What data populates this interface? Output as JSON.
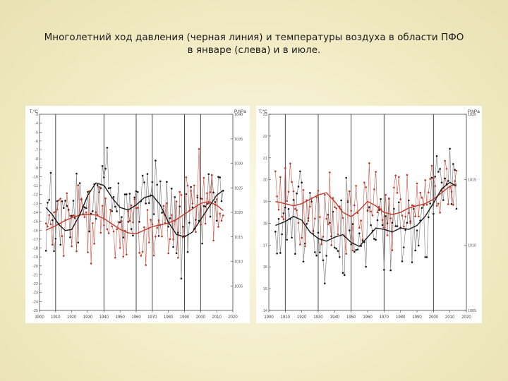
{
  "slide": {
    "title_line1": "Многолетний ход давления (черная линия) и температуры воздуха в области ПФО",
    "title_line2": "в январе (слева) и в июле."
  },
  "colors": {
    "temperature": "#c0392b",
    "pressure": "#1a1a1a",
    "panel_background": "#ffffff",
    "slide_background": "#f1ebc4"
  },
  "chart_data": [
    {
      "type": "line",
      "panel": "january",
      "y_left_label": "T,°C",
      "y_right_label": "P,hPa",
      "xlim": [
        1900,
        2020
      ],
      "ylim_left": [
        -25,
        -3
      ],
      "ylim_right": [
        1000,
        1040
      ],
      "x_ticks": [
        1900,
        1910,
        1920,
        1930,
        1940,
        1950,
        1960,
        1970,
        1980,
        1990,
        2000,
        2010,
        2020
      ],
      "y_left_ticks": [
        -3,
        -4,
        -5,
        -6,
        -7,
        -8,
        -9,
        -10,
        -11,
        -12,
        -13,
        -14,
        -15,
        -16,
        -17,
        -18,
        -19,
        -20,
        -21,
        -22,
        -23,
        -24,
        -25
      ],
      "y_right_ticks": [
        1040,
        1035,
        1030,
        1025,
        1020,
        1015,
        1010,
        1005
      ],
      "vertical_lines": [
        1910,
        1940,
        1960,
        1970,
        1990,
        2000
      ],
      "grid": false,
      "legend": "none",
      "series": [
        {
          "key": "temperature",
          "axis": "left",
          "smooth_x": [
            1904,
            1910,
            1915,
            1920,
            1925,
            1930,
            1935,
            1940,
            1945,
            1950,
            1955,
            1960,
            1965,
            1970,
            1975,
            1980,
            1985,
            1990,
            1995,
            2000,
            2005,
            2010,
            2014
          ],
          "smooth_y": [
            -16.0,
            -15.5,
            -15.0,
            -14.6,
            -14.3,
            -14.2,
            -14.3,
            -14.7,
            -15.3,
            -15.9,
            -16.3,
            -16.4,
            -16.0,
            -15.6,
            -15.4,
            -15.2,
            -14.8,
            -14.2,
            -13.6,
            -13.0,
            -12.8,
            -13.2,
            -13.8
          ]
        },
        {
          "key": "pressure",
          "axis": "right",
          "smooth_x": [
            1904,
            1908,
            1912,
            1916,
            1920,
            1925,
            1930,
            1935,
            1940,
            1945,
            1950,
            1955,
            1960,
            1965,
            1970,
            1975,
            1980,
            1985,
            1990,
            1995,
            2000,
            2005,
            2010,
            2014
          ],
          "smooth_y": [
            1021.0,
            1019.5,
            1017.5,
            1016.3,
            1016.5,
            1019.5,
            1023.5,
            1026.0,
            1025.5,
            1023.0,
            1021.0,
            1020.5,
            1021.5,
            1023.0,
            1023.5,
            1021.5,
            1018.0,
            1015.5,
            1015.0,
            1016.0,
            1018.5,
            1021.0,
            1023.5,
            1024.5
          ]
        }
      ]
    },
    {
      "type": "line",
      "panel": "july",
      "y_left_label": "T,°C",
      "y_right_label": "P,hPa",
      "xlim": [
        1900,
        2020
      ],
      "ylim_left": [
        14,
        23
      ],
      "ylim_right": [
        1005,
        1020
      ],
      "x_ticks": [
        1900,
        1910,
        1920,
        1930,
        1940,
        1950,
        1960,
        1970,
        1980,
        1990,
        2000,
        2010,
        2020
      ],
      "y_left_ticks": [
        23,
        22,
        21,
        20,
        19,
        18,
        17,
        16,
        15,
        14
      ],
      "y_right_ticks": [
        1020,
        1015,
        1010,
        1005
      ],
      "vertical_lines": [
        1910,
        1930,
        1950,
        1970,
        2000
      ],
      "grid": false,
      "legend": "none",
      "series": [
        {
          "key": "temperature",
          "axis": "left",
          "smooth_x": [
            1904,
            1910,
            1915,
            1920,
            1925,
            1930,
            1935,
            1940,
            1945,
            1950,
            1955,
            1960,
            1965,
            1970,
            1975,
            1980,
            1985,
            1990,
            1995,
            2000,
            2005,
            2010,
            2014
          ],
          "smooth_y": [
            19.0,
            18.9,
            18.8,
            18.9,
            19.1,
            19.3,
            19.4,
            19.0,
            18.5,
            18.3,
            18.6,
            19.0,
            18.8,
            18.5,
            18.4,
            18.5,
            18.7,
            18.8,
            18.9,
            19.1,
            19.4,
            19.7,
            19.8
          ]
        },
        {
          "key": "pressure",
          "axis": "right",
          "smooth_x": [
            1904,
            1910,
            1915,
            1920,
            1925,
            1930,
            1935,
            1940,
            1945,
            1950,
            1955,
            1960,
            1965,
            1970,
            1975,
            1980,
            1985,
            1990,
            1995,
            2000,
            2005,
            2010,
            2014
          ],
          "smooth_y": [
            1011.5,
            1011.8,
            1012.2,
            1011.9,
            1011.0,
            1010.5,
            1010.3,
            1010.6,
            1010.8,
            1010.2,
            1009.9,
            1010.6,
            1011.3,
            1011.2,
            1011.0,
            1011.3,
            1011.2,
            1011.5,
            1012.2,
            1013.2,
            1014.3,
            1014.8,
            1014.5
          ]
        }
      ]
    }
  ]
}
